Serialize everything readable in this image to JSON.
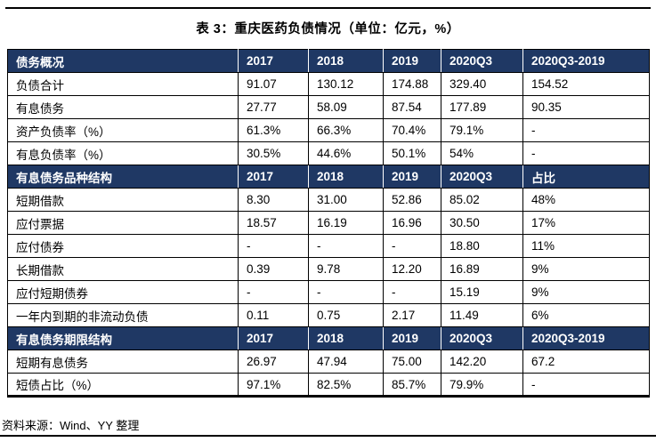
{
  "title": "表 3：重庆医药负债情况（单位：亿元，%）",
  "source": "资料来源：Wind、YY 整理",
  "colors": {
    "header_bg": "#1F3864",
    "header_text": "#FFFFFF",
    "body_text": "#000000",
    "border": "#000000"
  },
  "chart_data": {
    "type": "table",
    "title": "表 3：重庆医药负债情况（单位：亿元，%）",
    "units": "亿元，%",
    "sections": [
      {
        "header": [
          "债务概况",
          "2017",
          "2018",
          "2019",
          "2020Q3",
          "2020Q3-2019"
        ],
        "rows": [
          [
            "负债合计",
            "91.07",
            "130.12",
            "174.88",
            "329.40",
            "154.52"
          ],
          [
            "有息债务",
            "27.77",
            "58.09",
            "87.54",
            "177.89",
            "90.35"
          ],
          [
            "资产负债率（%）",
            "61.3%",
            "66.3%",
            "70.4%",
            "79.1%",
            "-"
          ],
          [
            "有息负债率（%）",
            "30.5%",
            "44.6%",
            "50.1%",
            "54%",
            "-"
          ]
        ]
      },
      {
        "header": [
          "有息债务品种结构",
          "2017",
          "2018",
          "2019",
          "2020Q3",
          "占比"
        ],
        "rows": [
          [
            "短期借款",
            "8.30",
            "31.00",
            "52.86",
            "85.02",
            "48%"
          ],
          [
            "应付票据",
            "18.57",
            "16.19",
            "16.96",
            "30.50",
            "17%"
          ],
          [
            "应付债券",
            "-",
            "-",
            "-",
            "18.80",
            "11%"
          ],
          [
            "长期借款",
            "0.39",
            "9.78",
            "12.20",
            "16.89",
            "9%"
          ],
          [
            "应付短期债券",
            "-",
            "-",
            "-",
            "15.19",
            "9%"
          ],
          [
            "一年内到期的非流动负债",
            "0.11",
            "0.75",
            "2.17",
            "11.49",
            "6%"
          ]
        ]
      },
      {
        "header": [
          "有息债务期限结构",
          "2017",
          "2018",
          "2019",
          "2020Q3",
          "2020Q3-2019"
        ],
        "rows": [
          [
            "短期有息债务",
            "26.97",
            "47.94",
            "75.00",
            "142.20",
            "67.2"
          ],
          [
            "短债占比（%）",
            "97.1%",
            "82.5%",
            "85.7%",
            "79.9%",
            "-"
          ]
        ]
      }
    ]
  }
}
